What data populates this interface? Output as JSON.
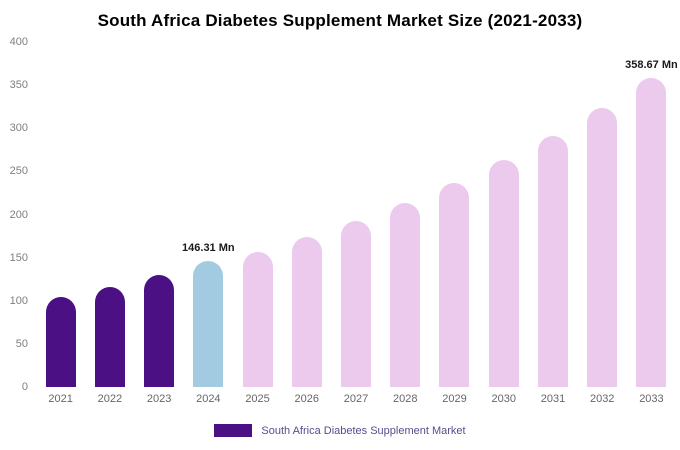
{
  "title": "South Africa Diabetes Supplement Market Size (2021-2033)",
  "legend": {
    "label": "South Africa Diabetes Supplement Market",
    "swatch_color": "#4b1083"
  },
  "colors": {
    "historical_bar": "#4b1083",
    "highlight_bar": "#a2cbe2",
    "forecast_bar": "#eccaee",
    "axis_label": "#7f7f7f",
    "annotation_text": "#1a1a1a",
    "background": "#ffffff"
  },
  "chart_data": {
    "type": "bar",
    "title": "South Africa Diabetes Supplement Market Size (2021-2033)",
    "categories": [
      "2021",
      "2022",
      "2023",
      "2024",
      "2025",
      "2026",
      "2027",
      "2028",
      "2029",
      "2030",
      "2031",
      "2032",
      "2033"
    ],
    "values": [
      104,
      116,
      130,
      146.31,
      157,
      174,
      192,
      213,
      236,
      263,
      291,
      323,
      358.67
    ],
    "bar_colors": [
      "#4b1083",
      "#4b1083",
      "#4b1083",
      "#a2cbe2",
      "#eccaee",
      "#eccaee",
      "#eccaee",
      "#eccaee",
      "#eccaee",
      "#eccaee",
      "#eccaee",
      "#eccaee",
      "#eccaee"
    ],
    "annotations": [
      {
        "index": 3,
        "text": "146.31 Mn"
      },
      {
        "index": 12,
        "text": "358.67 Mn"
      }
    ],
    "xlabel": "",
    "ylabel": "",
    "ylim": [
      0,
      400
    ],
    "yticks": [
      0,
      50,
      100,
      150,
      200,
      250,
      300,
      350,
      400
    ],
    "grid": false,
    "legend_position": "bottom"
  }
}
